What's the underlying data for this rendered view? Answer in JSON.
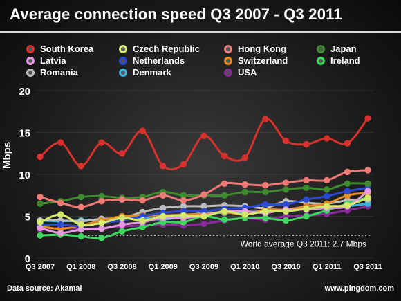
{
  "chart_data": {
    "type": "line",
    "title": "Average connection speed Q3 2007 - Q3 2011",
    "ylabel": "Mbps",
    "ylim": [
      0,
      20
    ],
    "yticks": [
      0,
      5,
      10,
      15,
      20
    ],
    "x": [
      "Q3 2007",
      "Q4 2007",
      "Q1 2008",
      "Q2 2008",
      "Q3 2008",
      "Q4 2008",
      "Q1 2009",
      "Q2 2009",
      "Q3 2009",
      "Q4 2009",
      "Q1 2010",
      "Q2 2010",
      "Q3 2010",
      "Q4 2010",
      "Q1 2011",
      "Q2 2011",
      "Q3 2011"
    ],
    "xtick_labels": [
      "Q3 2007",
      "Q1 2008",
      "Q3 2008",
      "Q1 2009",
      "Q3 2009",
      "Q1 2010",
      "Q3 2010",
      "Q1 2011",
      "Q3 2011"
    ],
    "annotation": "World average Q3 2011: 2.7 Mbps",
    "world_average": 2.7,
    "legend_placement": "top",
    "series": [
      {
        "name": "South Korea",
        "color": "#d8302a",
        "values": [
          12.1,
          13.8,
          11.0,
          13.8,
          12.5,
          15.2,
          11.0,
          11.2,
          14.6,
          12.2,
          12.0,
          16.6,
          14.0,
          13.6,
          14.3,
          13.7,
          16.7
        ]
      },
      {
        "name": "Czech Republic",
        "color": "#d4e86a",
        "values": [
          4.3,
          5.2,
          4.0,
          4.2,
          4.8,
          4.5,
          5.0,
          5.1,
          5.0,
          5.6,
          5.2,
          5.6,
          5.6,
          5.9,
          6.2,
          6.3,
          7.2
        ]
      },
      {
        "name": "Hong Kong",
        "color": "#f07a76",
        "values": [
          7.3,
          6.6,
          6.1,
          6.8,
          7.0,
          6.9,
          7.5,
          6.9,
          7.6,
          8.9,
          8.8,
          8.7,
          9.0,
          9.3,
          9.3,
          10.3,
          10.5
        ]
      },
      {
        "name": "Japan",
        "color": "#3e8a2e",
        "values": [
          6.5,
          6.8,
          7.3,
          7.4,
          7.2,
          7.3,
          7.9,
          7.5,
          7.5,
          7.5,
          7.9,
          7.9,
          8.2,
          8.4,
          8.2,
          8.9,
          8.9
        ]
      },
      {
        "name": "Latvia",
        "color": "#e59ae2",
        "values": [
          3.6,
          3.0,
          3.4,
          3.5,
          4.0,
          4.3,
          4.8,
          4.8,
          5.1,
          5.6,
          5.6,
          5.4,
          5.8,
          5.8,
          6.0,
          6.2,
          8.0
        ]
      },
      {
        "name": "Netherlands",
        "color": "#2a4ad4",
        "values": [
          4.0,
          4.0,
          3.8,
          4.2,
          4.5,
          5.0,
          5.4,
          5.6,
          5.6,
          5.9,
          6.0,
          6.4,
          6.4,
          7.0,
          7.4,
          8.0,
          8.4
        ]
      },
      {
        "name": "Switzerland",
        "color": "#e68a22",
        "values": [
          3.8,
          3.5,
          3.9,
          4.5,
          5.0,
          5.1,
          5.1,
          5.2,
          5.3,
          5.5,
          5.2,
          5.8,
          5.8,
          6.2,
          6.5,
          7.5,
          7.8
        ]
      },
      {
        "name": "Ireland",
        "color": "#3ed65e",
        "values": [
          2.7,
          2.8,
          2.6,
          2.4,
          3.2,
          3.7,
          4.3,
          4.3,
          5.0,
          4.6,
          4.8,
          4.8,
          4.5,
          5.0,
          5.7,
          6.5,
          7.3
        ]
      },
      {
        "name": "Romania",
        "color": "#bdbdbd",
        "values": [
          4.5,
          4.5,
          4.4,
          4.7,
          4.8,
          5.5,
          6.0,
          6.2,
          6.2,
          6.3,
          6.2,
          6.0,
          6.8,
          6.6,
          6.5,
          6.9,
          7.0
        ]
      },
      {
        "name": "Denmark",
        "color": "#3ab0e0",
        "values": [
          4.5,
          4.4,
          4.5,
          4.6,
          4.7,
          4.8,
          4.6,
          5.0,
          5.4,
          5.4,
          5.5,
          5.6,
          5.6,
          5.9,
          6.0,
          6.2,
          6.5
        ]
      },
      {
        "name": "USA",
        "color": "#8a2a9a",
        "values": [
          3.4,
          3.6,
          3.5,
          3.6,
          3.8,
          3.9,
          4.0,
          3.9,
          4.1,
          4.5,
          4.8,
          4.6,
          5.0,
          5.1,
          5.3,
          5.7,
          6.2
        ]
      }
    ]
  },
  "footer": {
    "source": "Data source: Akamai",
    "site": "www.pingdom.com"
  }
}
